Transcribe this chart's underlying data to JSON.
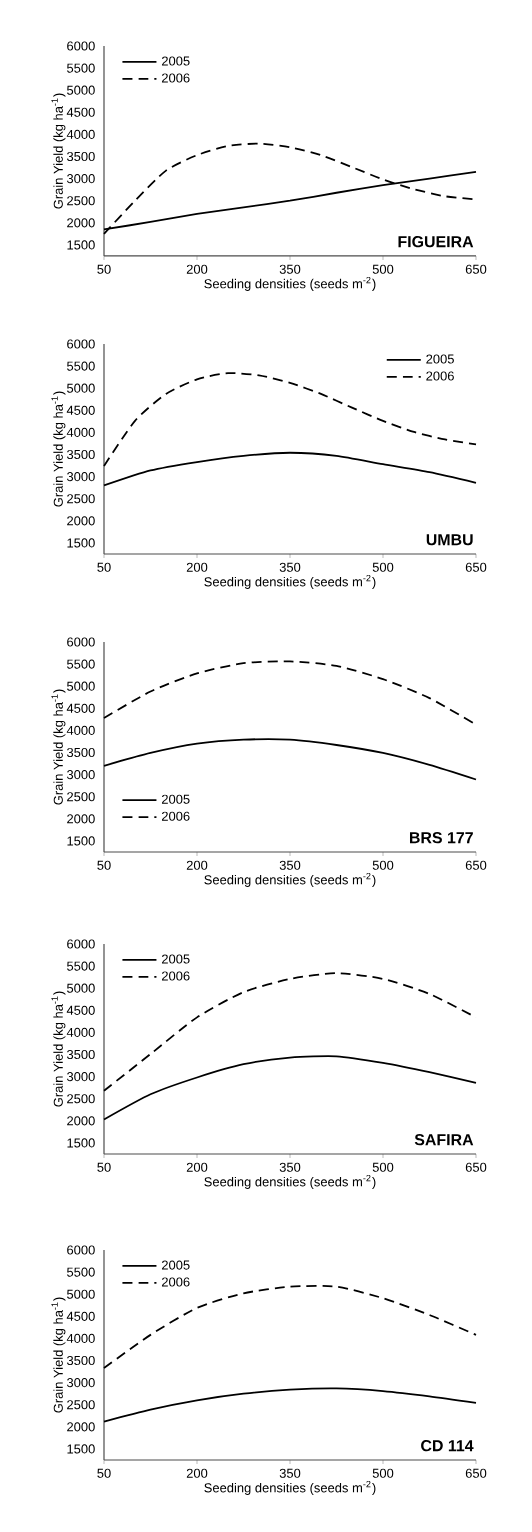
{
  "chart_data": [
    {
      "type": "line",
      "x": [
        50,
        125,
        200,
        275,
        350,
        425,
        500,
        575,
        650
      ],
      "xlabel": "Seeding densities (seeds m$^{-2}$)",
      "ylabel": "Grain Yield (kg ha$^{-1}$)",
      "xlim": [
        50,
        650
      ],
      "ylim": [
        1250,
        6000
      ],
      "xticks": [
        50,
        200,
        350,
        500,
        650
      ],
      "yticks": [
        1500,
        2000,
        2500,
        3000,
        3500,
        4000,
        4500,
        5000,
        5500,
        6000
      ],
      "legend": "top left",
      "annotations": [
        "FIGUEIRA"
      ],
      "series": [
        {
          "name": "2005",
          "color": "#000000",
          "line_style": "solid",
          "values": [
            1850,
            2020,
            2200,
            2350,
            2500,
            2680,
            2850,
            3000,
            3150
          ]
        },
        {
          "name": "2006",
          "color": "#000000",
          "line_style": "dashed",
          "x": [
            50,
            100,
            150,
            200,
            250,
            300,
            350,
            400,
            450,
            500,
            550,
            600,
            650
          ],
          "values": [
            1750,
            2500,
            3180,
            3530,
            3740,
            3790,
            3710,
            3530,
            3260,
            2980,
            2760,
            2600,
            2530
          ]
        }
      ]
    },
    {
      "type": "line",
      "x": [
        50,
        125,
        200,
        275,
        350,
        425,
        500,
        575,
        650
      ],
      "xlabel": "Seeding densities (seeds m$^{-2}$)",
      "ylabel": "Grain Yield (kg ha$^{-1}$)",
      "xlim": [
        50,
        650
      ],
      "ylim": [
        1250,
        6000
      ],
      "xticks": [
        50,
        200,
        350,
        500,
        650
      ],
      "yticks": [
        1500,
        2000,
        2500,
        3000,
        3500,
        4000,
        4500,
        5000,
        5500,
        6000
      ],
      "legend": "top right",
      "annotations": [
        "UMBU"
      ],
      "series": [
        {
          "name": "2005",
          "color": "#000000",
          "line_style": "solid",
          "values": [
            2800,
            3140,
            3330,
            3470,
            3540,
            3470,
            3280,
            3100,
            2860
          ]
        },
        {
          "name": "2006",
          "color": "#000000",
          "line_style": "dashed",
          "x": [
            50,
            100,
            150,
            200,
            250,
            300,
            350,
            400,
            450,
            500,
            550,
            600,
            650
          ],
          "values": [
            3240,
            4260,
            4870,
            5200,
            5340,
            5290,
            5120,
            4870,
            4560,
            4260,
            4010,
            3840,
            3730
          ]
        }
      ]
    },
    {
      "type": "line",
      "x": [
        50,
        125,
        200,
        275,
        350,
        425,
        500,
        575,
        650
      ],
      "xlabel": "Seeding densities (seeds m$^{-2}$)",
      "ylabel": "Grain Yield (kg ha$^{-1}$)",
      "xlim": [
        50,
        650
      ],
      "ylim": [
        1250,
        6000
      ],
      "xticks": [
        50,
        200,
        350,
        500,
        650
      ],
      "yticks": [
        1500,
        2000,
        2500,
        3000,
        3500,
        4000,
        4500,
        5000,
        5500,
        6000
      ],
      "legend": "bottom left",
      "annotations": [
        "BRS 177"
      ],
      "series": [
        {
          "name": "2005",
          "color": "#000000",
          "line_style": "solid",
          "values": [
            3200,
            3490,
            3700,
            3790,
            3790,
            3670,
            3490,
            3220,
            2890
          ]
        },
        {
          "name": "2006",
          "color": "#000000",
          "line_style": "dashed",
          "values": [
            4280,
            4880,
            5290,
            5520,
            5560,
            5460,
            5160,
            4730,
            4130
          ]
        }
      ]
    },
    {
      "type": "line",
      "x": [
        50,
        125,
        200,
        275,
        350,
        425,
        500,
        575,
        650
      ],
      "xlabel": "Seeding densities (seeds m$^{-2}$)",
      "ylabel": "Grain Yield (kg ha$^{-1}$)",
      "xlim": [
        50,
        650
      ],
      "ylim": [
        1250,
        6000
      ],
      "xticks": [
        50,
        200,
        350,
        500,
        650
      ],
      "yticks": [
        1500,
        2000,
        2500,
        3000,
        3500,
        4000,
        4500,
        5000,
        5500,
        6000
      ],
      "legend": "top left",
      "annotations": [
        "SAFIRA"
      ],
      "series": [
        {
          "name": "2005",
          "color": "#000000",
          "line_style": "solid",
          "values": [
            2030,
            2600,
            2980,
            3280,
            3430,
            3460,
            3310,
            3100,
            2860
          ]
        },
        {
          "name": "2006",
          "color": "#000000",
          "line_style": "dashed",
          "values": [
            2680,
            3510,
            4340,
            4910,
            5210,
            5340,
            5210,
            4870,
            4340
          ]
        }
      ]
    },
    {
      "type": "line",
      "x": [
        50,
        125,
        200,
        275,
        350,
        425,
        500,
        575,
        650
      ],
      "xlabel": "Seeding densities (seeds m$^{-2}$)",
      "ylabel": "Grain Yield (kg ha$^{-1}$)",
      "xlim": [
        50,
        650
      ],
      "ylim": [
        1250,
        6000
      ],
      "xticks": [
        50,
        200,
        350,
        500,
        650
      ],
      "yticks": [
        1500,
        2000,
        2500,
        3000,
        3500,
        4000,
        4500,
        5000,
        5500,
        6000
      ],
      "legend": "top left",
      "annotations": [
        "CD 114"
      ],
      "series": [
        {
          "name": "2005",
          "color": "#000000",
          "line_style": "solid",
          "values": [
            2120,
            2390,
            2600,
            2750,
            2840,
            2870,
            2810,
            2690,
            2540
          ]
        },
        {
          "name": "2006",
          "color": "#000000",
          "line_style": "dashed",
          "values": [
            3330,
            4080,
            4690,
            5020,
            5170,
            5170,
            4910,
            4530,
            4080
          ]
        }
      ]
    }
  ]
}
